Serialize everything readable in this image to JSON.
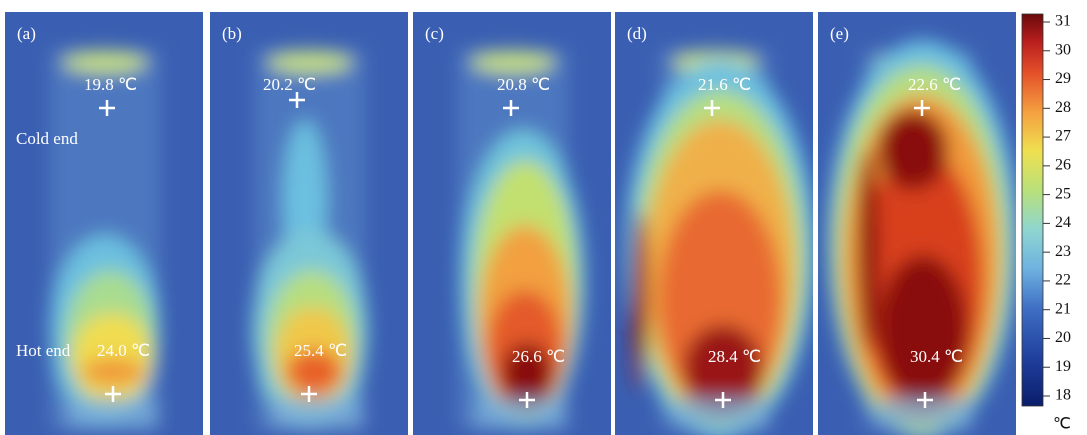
{
  "panels": [
    {
      "label": "(a)",
      "top_temp": "19.8 ℃",
      "bottom_temp": "24.0 ℃"
    },
    {
      "label": "(b)",
      "top_temp": "20.2 ℃",
      "bottom_temp": "25.4 ℃"
    },
    {
      "label": "(c)",
      "top_temp": "20.8 ℃",
      "bottom_temp": "26.6 ℃"
    },
    {
      "label": "(d)",
      "top_temp": "21.6 ℃",
      "bottom_temp": "28.4 ℃"
    },
    {
      "label": "(e)",
      "top_temp": "22.6 ℃",
      "bottom_temp": "30.4 ℃"
    }
  ],
  "annotations": {
    "cold": "Cold end",
    "hot": "Hot end"
  },
  "colorbar": {
    "ticks": [
      18,
      19,
      20,
      21,
      22,
      23,
      24,
      25,
      26,
      27,
      28,
      29,
      30,
      31
    ],
    "unit": "℃"
  }
}
